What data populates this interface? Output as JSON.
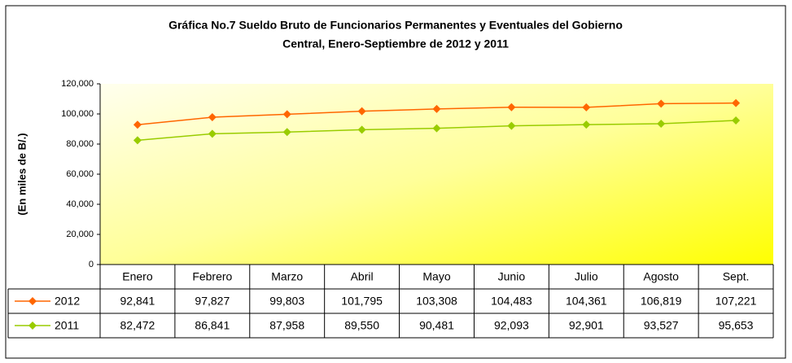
{
  "chart_data": {
    "type": "line",
    "title": [
      "Gráfica No.7 Sueldo Bruto de Funcionarios Permanentes y Eventuales del Gobierno",
      "Central, Enero-Septiembre de 2012 y 2011"
    ],
    "ylabel": "(En miles de B/.)",
    "categories": [
      "Enero",
      "Febrero",
      "Marzo",
      "Abril",
      "Mayo",
      "Junio",
      "Julio",
      "Agosto",
      "Sept."
    ],
    "series": [
      {
        "name": "2012",
        "color": "#ff6600",
        "values": [
          92841,
          97827,
          99803,
          101795,
          103308,
          104483,
          104361,
          106819,
          107221
        ],
        "value_labels": [
          "92,841",
          "97,827",
          "99,803",
          "101,795",
          "103,308",
          "104,483",
          "104,361",
          "106,819",
          "107,221"
        ]
      },
      {
        "name": "2011",
        "color": "#99cc00",
        "values": [
          82472,
          86841,
          87958,
          89550,
          90481,
          92093,
          92901,
          93527,
          95653
        ],
        "value_labels": [
          "82,472",
          "86,841",
          "87,958",
          "89,550",
          "90,481",
          "92,093",
          "92,901",
          "93,527",
          "95,653"
        ]
      }
    ],
    "ylim": [
      0,
      120000
    ],
    "yticks": [
      0,
      {
        "value": 20000,
        "label": "20,000"
      },
      {
        "value": 40000,
        "label": "40,000"
      },
      {
        "value": 60000,
        "label": "60,000"
      },
      {
        "value": 80000,
        "label": "80,000"
      },
      {
        "value": 100000,
        "label": "100,000"
      },
      {
        "value": 120000,
        "label": "120,000"
      }
    ],
    "grid": false
  }
}
